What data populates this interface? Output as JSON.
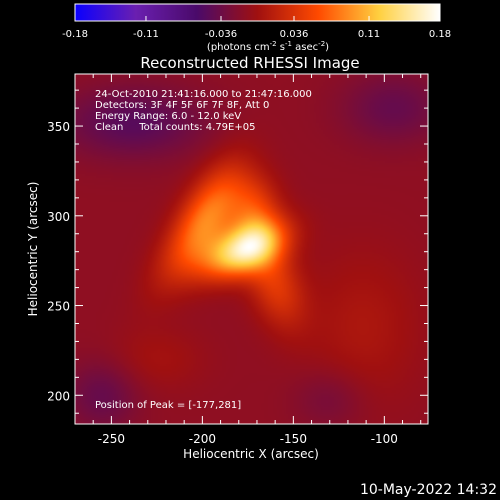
{
  "chart_data": {
    "type": "heatmap",
    "title": "Reconstructed RHESSI Image",
    "colorbar": {
      "ticks": [
        "-0.18",
        "-0.11",
        "-0.036",
        "0.036",
        "0.11",
        "0.18"
      ],
      "range": [
        -0.18,
        0.18
      ],
      "unit_text": "(photons cm",
      "unit_sup1": "-2",
      "unit_mid": " s",
      "unit_sup2": "-1",
      "unit_mid2": " asec",
      "unit_sup3": "-2",
      "unit_end": ")",
      "colors": [
        "#0a00ff",
        "#6a1fb0",
        "#4a0a6a",
        "#a01010",
        "#ff4a00",
        "#ffd040",
        "#ffffff"
      ]
    },
    "xlabel": "Heliocentric X (arcsec)",
    "ylabel": "Heliocentric Y (arcsec)",
    "xlim": [
      -270,
      -76
    ],
    "ylim": [
      184,
      379
    ],
    "xticks": [
      "-250",
      "-200",
      "-150",
      "-100"
    ],
    "yticks": [
      "200",
      "250",
      "300",
      "350"
    ],
    "info_lines": [
      "24-Oct-2010 21:41:16.000 to 21:47:16.000",
      "Detectors: 3F 4F 5F 6F 7F 8F, Att 0",
      "Energy Range: 6.0 - 12.0 keV",
      "Clean     Total counts: 4.79E+05"
    ],
    "peak_label": "Position of Peak = [-177,281]",
    "peak": {
      "x": -177,
      "y": 281,
      "value": 0.18
    },
    "sources": [
      {
        "x": -177,
        "y": 281,
        "sx": 16,
        "sy": 9,
        "angle": 25,
        "amp": 0.32
      },
      {
        "x": -196,
        "y": 300,
        "sx": 10,
        "sy": 22,
        "angle": -25,
        "amp": 0.17
      },
      {
        "x": -172,
        "y": 302,
        "sx": 10,
        "sy": 14,
        "angle": 0,
        "amp": 0.13
      },
      {
        "x": -160,
        "y": 262,
        "sx": 10,
        "sy": 18,
        "angle": 20,
        "amp": 0.11
      },
      {
        "x": -212,
        "y": 282,
        "sx": 9,
        "sy": 22,
        "angle": -30,
        "amp": 0.06
      },
      {
        "x": -225,
        "y": 220,
        "sx": 18,
        "sy": 12,
        "angle": 0,
        "amp": 0.03
      },
      {
        "x": -112,
        "y": 238,
        "sx": 22,
        "sy": 30,
        "angle": 0,
        "amp": 0.04
      },
      {
        "x": -238,
        "y": 352,
        "sx": 28,
        "sy": 14,
        "angle": 0,
        "amp": -0.08
      },
      {
        "x": -95,
        "y": 360,
        "sx": 20,
        "sy": 14,
        "angle": 0,
        "amp": -0.06
      },
      {
        "x": -255,
        "y": 200,
        "sx": 14,
        "sy": 14,
        "angle": 0,
        "amp": -0.06
      },
      {
        "x": -130,
        "y": 198,
        "sx": 14,
        "sy": 12,
        "angle": 0,
        "amp": -0.04
      }
    ]
  },
  "footer": {
    "timestamp": "10-May-2022 14:32"
  }
}
